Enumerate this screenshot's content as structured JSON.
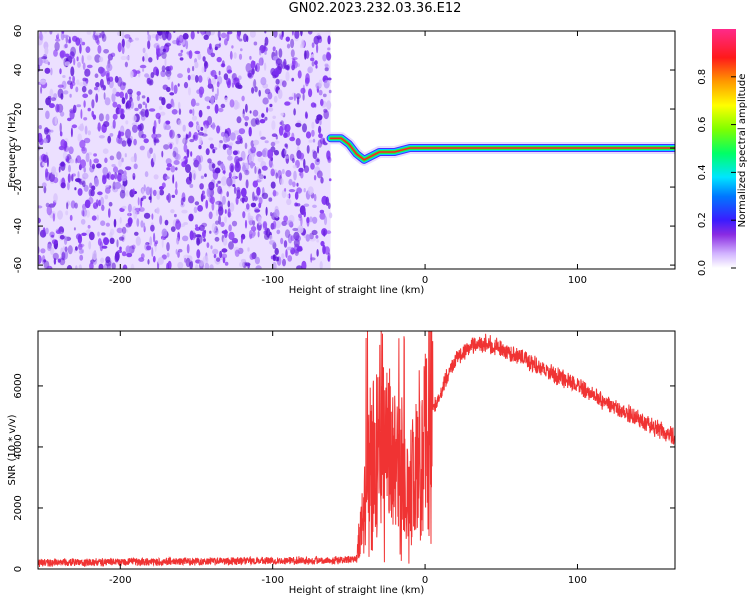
{
  "title": "GN02.2023.232.03.36.E12",
  "chart_data": [
    {
      "type": "heatmap",
      "xlabel": "Height of straight line (km)",
      "ylabel": "Frequency (Hz)",
      "xlim": [
        -254,
        164
      ],
      "ylim": [
        -62,
        60
      ],
      "xticks": [
        -200,
        -100,
        0,
        100
      ],
      "yticks": [
        60,
        40,
        20,
        0,
        -20,
        -40,
        -60
      ],
      "colorbar": {
        "label": "Normalized spectral amplitude",
        "range": [
          0,
          1
        ],
        "ticks": [
          "0.0",
          "0.2",
          "0.4",
          "0.6",
          "0.8"
        ],
        "tick_values": [
          0.0,
          0.2,
          0.4,
          0.6,
          0.8
        ]
      },
      "regions": {
        "noise": {
          "x": [
            -254,
            -62
          ],
          "y": [
            -62,
            60
          ],
          "typical_amplitude": 0.1
        },
        "tone": {
          "x": [
            -62,
            164
          ],
          "points": [
            [
              -62,
              5
            ],
            [
              -55,
              5
            ],
            [
              -50,
              2
            ],
            [
              -45,
              -3
            ],
            [
              -40,
              -6
            ],
            [
              -35,
              -4
            ],
            [
              -30,
              -2
            ],
            [
              -20,
              -2
            ],
            [
              -15,
              -1
            ],
            [
              -10,
              0
            ],
            [
              -5,
              0
            ],
            [
              0,
              0
            ],
            [
              10,
              0
            ],
            [
              164,
              0
            ]
          ],
          "peak_amplitude": 1.0
        }
      }
    },
    {
      "type": "line",
      "xlabel": "Height of straight line (km)",
      "ylabel": "SNR (10 * v/v)",
      "xlim": [
        -254,
        164
      ],
      "ylim": [
        0,
        7800
      ],
      "xticks": [
        -200,
        -100,
        0,
        100
      ],
      "yticks": [
        0,
        2000,
        4000,
        6000
      ],
      "color": "#f03333",
      "envelope": [
        {
          "x": -254,
          "y": 200
        },
        {
          "x": -150,
          "y": 250
        },
        {
          "x": -45,
          "y": 300
        },
        {
          "x": -38,
          "y": 2500
        },
        {
          "x": -30,
          "y": 4500
        },
        {
          "x": -20,
          "y": 3500
        },
        {
          "x": -10,
          "y": 2500
        },
        {
          "x": 0,
          "y": 4500
        },
        {
          "x": 10,
          "y": 5800
        },
        {
          "x": 20,
          "y": 6900
        },
        {
          "x": 30,
          "y": 7300
        },
        {
          "x": 40,
          "y": 7400
        },
        {
          "x": 60,
          "y": 7000
        },
        {
          "x": 80,
          "y": 6500
        },
        {
          "x": 100,
          "y": 6000
        },
        {
          "x": 120,
          "y": 5400
        },
        {
          "x": 140,
          "y": 4900
        },
        {
          "x": 164,
          "y": 4300
        }
      ]
    }
  ]
}
